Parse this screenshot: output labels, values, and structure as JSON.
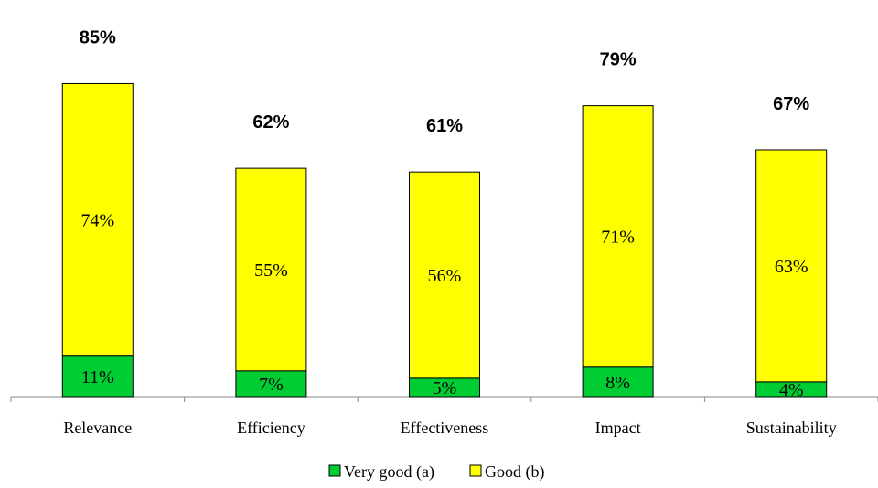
{
  "chart_data": {
    "type": "bar",
    "stacked": true,
    "categories": [
      "Relevance",
      "Efficiency",
      "Effectiveness",
      "Impact",
      "Sustainability"
    ],
    "series": [
      {
        "name": "Very good (a)",
        "values": [
          11,
          7,
          5,
          8,
          4
        ],
        "labels": [
          "11%",
          "7%",
          "5%",
          "8%",
          "4%"
        ],
        "color": "#00cc33"
      },
      {
        "name": "Good (b)",
        "values": [
          74,
          55,
          56,
          71,
          63
        ],
        "labels": [
          "74%",
          "55%",
          "56%",
          "71%",
          "63%"
        ],
        "color": "#ffff00"
      }
    ],
    "totals": [
      85,
      62,
      61,
      79,
      67
    ],
    "total_labels": [
      "85%",
      "62%",
      "61%",
      "79%",
      "67%"
    ],
    "ylim": [
      0,
      100
    ],
    "grid": false,
    "legend_position": "bottom"
  }
}
